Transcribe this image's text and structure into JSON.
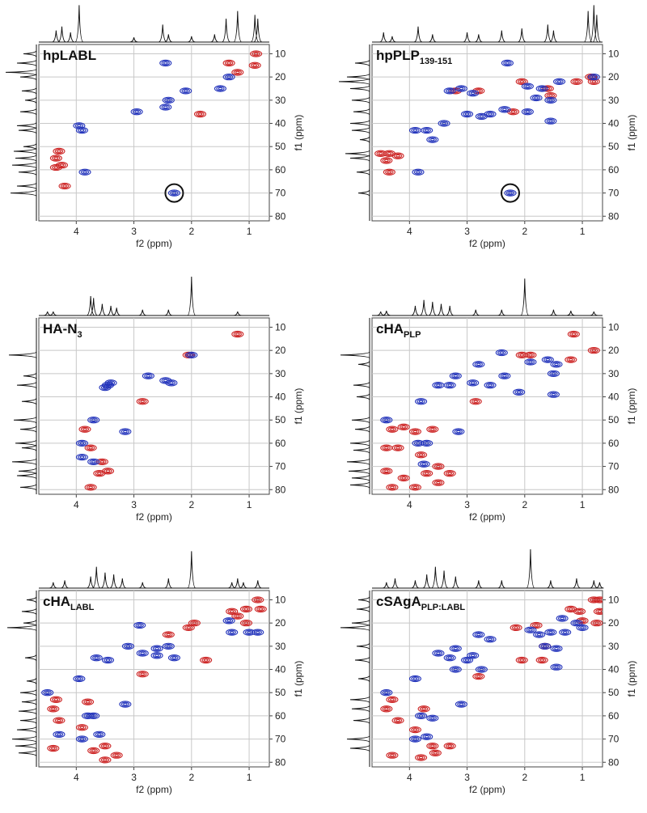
{
  "chart_data": [
    {
      "type": "scatter",
      "title": "hpLABL",
      "xlabel": "f2 (ppm)",
      "ylabel": "f1 (ppm)",
      "xlim": [
        4.65,
        0.65
      ],
      "xticks": [
        4,
        3,
        2,
        1
      ],
      "ylim": [
        6,
        82
      ],
      "yticks": [
        10,
        20,
        30,
        40,
        50,
        60,
        70,
        80
      ],
      "grid": true,
      "series": [
        {
          "color": "#cc2222",
          "x": [
            0.88,
            1.2,
            1.35,
            0.9,
            1.85,
            4.3,
            4.35,
            4.25,
            4.35,
            4.2
          ],
          "values": [
            10,
            18,
            14,
            15,
            36,
            52,
            55,
            58,
            59,
            67
          ]
        },
        {
          "color": "#2233bb",
          "x": [
            2.45,
            1.5,
            1.35,
            2.1,
            2.4,
            2.45,
            2.95,
            3.95,
            3.9,
            3.85,
            2.3
          ],
          "values": [
            14,
            25,
            20,
            26,
            30,
            33,
            35,
            41,
            43,
            61,
            70
          ]
        }
      ],
      "marker": {
        "x": 2.3,
        "y": 70
      },
      "top_projection": {
        "color": "#111111",
        "positions": [
          4.35,
          4.25,
          4.1,
          3.95,
          2.5,
          2.4,
          3.0,
          2.0,
          1.4,
          1.2,
          0.9,
          0.85,
          1.6
        ],
        "values": [
          30,
          40,
          25,
          95,
          45,
          20,
          12,
          15,
          60,
          80,
          70,
          60,
          20
        ]
      },
      "left_projection": {
        "color": "#111111",
        "positions": [
          10,
          14,
          18,
          20,
          26,
          30,
          35,
          41,
          43,
          50,
          52,
          55,
          58,
          61,
          67,
          70
        ],
        "values": [
          40,
          60,
          95,
          50,
          45,
          35,
          50,
          60,
          55,
          40,
          70,
          65,
          75,
          55,
          60,
          80
        ]
      }
    },
    {
      "type": "scatter",
      "title": "hpPLP",
      "title_sub": "139-151",
      "xlabel": "f2 (ppm)",
      "ylabel": "f1 (ppm)",
      "xlim": [
        4.65,
        0.65
      ],
      "xticks": [
        4,
        3,
        2,
        1
      ],
      "ylim": [
        6,
        82
      ],
      "yticks": [
        10,
        20,
        30,
        40,
        50,
        60,
        70,
        80
      ],
      "grid": true,
      "series": [
        {
          "color": "#cc2222",
          "x": [
            0.85,
            0.8,
            1.1,
            1.6,
            1.55,
            2.05,
            2.8,
            3.2,
            4.5,
            4.35,
            4.2,
            4.4,
            4.35,
            2.2
          ],
          "values": [
            20,
            22,
            22,
            25,
            28,
            22,
            26,
            26,
            53,
            53,
            54,
            56,
            61,
            35
          ]
        },
        {
          "color": "#2233bb",
          "x": [
            2.3,
            0.8,
            1.4,
            1.7,
            1.95,
            1.8,
            1.55,
            1.95,
            2.6,
            2.75,
            3.0,
            3.1,
            3.3,
            2.9,
            1.55,
            3.9,
            3.7,
            3.6,
            2.35,
            3.85,
            2.25,
            3.4
          ],
          "values": [
            14,
            20,
            22,
            25,
            24,
            29,
            30,
            35,
            36,
            37,
            36,
            25,
            26,
            27,
            39,
            43,
            43,
            47,
            34,
            61,
            70,
            40
          ]
        }
      ],
      "marker": {
        "x": 2.25,
        "y": 70
      },
      "top_projection": {
        "color": "#111111",
        "positions": [
          4.45,
          4.3,
          3.85,
          3.6,
          3.0,
          2.8,
          2.4,
          2.05,
          1.6,
          1.5,
          0.9,
          0.8,
          0.75
        ],
        "values": [
          25,
          15,
          40,
          20,
          25,
          20,
          30,
          35,
          45,
          30,
          80,
          95,
          70
        ]
      },
      "left_projection": {
        "color": "#111111",
        "positions": [
          14,
          20,
          22,
          25,
          30,
          35,
          40,
          43,
          47,
          53,
          55,
          61,
          70
        ],
        "values": [
          45,
          70,
          95,
          60,
          55,
          50,
          60,
          55,
          30,
          75,
          60,
          40,
          35
        ]
      }
    },
    {
      "type": "scatter",
      "title": "HA-N",
      "title_sub": "3",
      "xlabel": "f2 (ppm)",
      "ylabel": "f1 (ppm)",
      "xlim": [
        4.65,
        0.65
      ],
      "xticks": [
        4,
        3,
        2,
        1
      ],
      "ylim": [
        6,
        82
      ],
      "yticks": [
        10,
        20,
        30,
        40,
        50,
        60,
        70,
        80
      ],
      "grid": true,
      "series": [
        {
          "color": "#cc2222",
          "x": [
            1.2,
            2.05,
            2.85,
            3.85,
            3.75,
            3.45,
            3.6,
            3.75,
            3.55
          ],
          "values": [
            13,
            22,
            42,
            54,
            62,
            72,
            73,
            79,
            68
          ]
        },
        {
          "color": "#2233bb",
          "x": [
            2.0,
            2.75,
            2.45,
            2.35,
            3.4,
            3.5,
            3.45,
            3.7,
            3.9,
            3.15,
            3.7,
            3.9
          ],
          "values": [
            22,
            31,
            33,
            34,
            34,
            36,
            35,
            50,
            60,
            55,
            68,
            66
          ]
        }
      ],
      "top_projection": {
        "color": "#111111",
        "positions": [
          4.5,
          4.4,
          3.75,
          3.7,
          3.55,
          3.4,
          3.3,
          2.85,
          2.4,
          2.0,
          1.2
        ],
        "values": [
          10,
          10,
          50,
          45,
          30,
          25,
          20,
          15,
          15,
          100,
          10
        ]
      },
      "left_projection": {
        "color": "#111111",
        "positions": [
          22,
          31,
          35,
          42,
          50,
          54,
          60,
          62,
          68,
          72,
          74,
          79
        ],
        "values": [
          85,
          40,
          60,
          45,
          70,
          50,
          65,
          45,
          75,
          55,
          60,
          50
        ]
      }
    },
    {
      "type": "scatter",
      "title": "cHA",
      "title_sub": "PLP",
      "xlabel": "f2 (ppm)",
      "ylabel": "f1 (ppm)",
      "xlim": [
        4.65,
        0.65
      ],
      "xticks": [
        4,
        3,
        2,
        1
      ],
      "ylim": [
        6,
        82
      ],
      "yticks": [
        10,
        20,
        30,
        40,
        50,
        60,
        70,
        80
      ],
      "grid": true,
      "series": [
        {
          "color": "#cc2222",
          "x": [
            0.8,
            1.15,
            2.05,
            1.9,
            2.85,
            1.2,
            4.3,
            4.1,
            3.9,
            3.6,
            4.4,
            4.2,
            3.8,
            3.5,
            3.3,
            4.4,
            4.1,
            3.7,
            3.5,
            4.3,
            3.9
          ],
          "values": [
            20,
            13,
            22,
            22,
            42,
            24,
            54,
            53,
            55,
            54,
            62,
            62,
            65,
            70,
            73,
            72,
            75,
            73,
            77,
            79,
            79
          ]
        },
        {
          "color": "#2233bb",
          "x": [
            1.6,
            1.45,
            2.4,
            2.8,
            3.2,
            3.5,
            3.3,
            2.9,
            2.6,
            1.5,
            1.5,
            3.85,
            3.7,
            3.75,
            3.15,
            4.4,
            2.1,
            3.8,
            2.35,
            1.9
          ],
          "values": [
            24,
            26,
            21,
            26,
            31,
            35,
            35,
            34,
            35,
            30,
            39,
            60,
            60,
            69,
            55,
            50,
            38,
            42,
            31,
            25
          ]
        }
      ],
      "top_projection": {
        "color": "#111111",
        "positions": [
          4.5,
          4.4,
          3.9,
          3.75,
          3.6,
          3.45,
          3.3,
          2.85,
          2.4,
          2.0,
          1.5,
          1.2,
          0.8
        ],
        "values": [
          10,
          12,
          25,
          40,
          35,
          30,
          25,
          15,
          15,
          95,
          15,
          12,
          10
        ]
      },
      "left_projection": {
        "color": "#111111",
        "positions": [
          22,
          26,
          35,
          40,
          50,
          54,
          60,
          63,
          68,
          72,
          75,
          78
        ],
        "values": [
          90,
          35,
          50,
          40,
          55,
          45,
          60,
          50,
          70,
          65,
          55,
          60
        ]
      }
    },
    {
      "type": "scatter",
      "title": "cHA",
      "title_sub": "LABL",
      "xlabel": "f2 (ppm)",
      "ylabel": "f1 (ppm)",
      "xlim": [
        4.65,
        0.65
      ],
      "xticks": [
        4,
        3,
        2,
        1
      ],
      "ylim": [
        6,
        82
      ],
      "yticks": [
        10,
        20,
        30,
        40,
        50,
        60,
        70,
        80
      ],
      "grid": true,
      "series": [
        {
          "color": "#cc2222",
          "x": [
            0.85,
            0.8,
            1.05,
            1.2,
            1.3,
            1.05,
            2.05,
            1.95,
            2.4,
            1.75,
            2.85,
            4.4,
            4.35,
            3.8,
            4.3,
            3.9,
            3.5,
            3.7,
            3.3,
            3.5,
            4.4
          ],
          "values": [
            10,
            14,
            14,
            17,
            15,
            20,
            22,
            20,
            25,
            36,
            42,
            57,
            53,
            54,
            62,
            65,
            73,
            75,
            77,
            79,
            74
          ]
        },
        {
          "color": "#2233bb",
          "x": [
            1.35,
            0.85,
            1.0,
            1.3,
            2.9,
            2.4,
            2.6,
            2.85,
            3.45,
            3.65,
            2.6,
            2.3,
            3.1,
            3.95,
            3.8,
            3.7,
            4.5,
            3.15,
            3.6,
            4.3,
            3.9
          ],
          "values": [
            19,
            24,
            24,
            24,
            21,
            30,
            31,
            33,
            36,
            35,
            34,
            35,
            30,
            44,
            60,
            60,
            50,
            55,
            68,
            68,
            70
          ]
        }
      ],
      "top_projection": {
        "color": "#111111",
        "positions": [
          4.4,
          4.2,
          3.75,
          3.65,
          3.5,
          3.35,
          3.2,
          2.85,
          2.4,
          2.0,
          1.3,
          1.2,
          1.1,
          0.85
        ],
        "values": [
          15,
          20,
          30,
          55,
          40,
          35,
          25,
          15,
          25,
          95,
          15,
          25,
          15,
          20
        ]
      },
      "left_projection": {
        "color": "#111111",
        "positions": [
          10,
          15,
          20,
          22,
          35,
          45,
          50,
          54,
          58,
          62,
          66,
          70,
          73,
          76
        ],
        "values": [
          30,
          45,
          40,
          90,
          35,
          30,
          50,
          45,
          55,
          50,
          60,
          75,
          65,
          55
        ]
      }
    },
    {
      "type": "scatter",
      "title": "cSAgA",
      "title_sub": "PLP:LABL",
      "xlabel": "f2 (ppm)",
      "ylabel": "f1 (ppm)",
      "xlim": [
        4.65,
        0.65
      ],
      "xticks": [
        4,
        3,
        2,
        1
      ],
      "ylim": [
        6,
        82
      ],
      "yticks": [
        10,
        20,
        30,
        40,
        50,
        60,
        70,
        80
      ],
      "grid": true,
      "series": [
        {
          "color": "#cc2222",
          "x": [
            0.8,
            0.7,
            1.05,
            0.7,
            1.0,
            0.75,
            1.2,
            2.15,
            1.8,
            1.65,
            1.7,
            2.05,
            2.8,
            4.3,
            4.4,
            4.2,
            3.9,
            3.75,
            3.6,
            3.3,
            3.8,
            4.3,
            3.55
          ],
          "values": [
            10,
            10,
            15,
            15,
            19,
            20,
            14,
            22,
            21,
            30,
            36,
            36,
            43,
            53,
            57,
            62,
            66,
            57,
            73,
            73,
            78,
            77,
            76
          ]
        },
        {
          "color": "#2233bb",
          "x": [
            1.35,
            1.1,
            1.0,
            1.9,
            1.55,
            1.3,
            1.75,
            2.6,
            2.8,
            3.2,
            3.5,
            3.3,
            3.0,
            2.9,
            2.75,
            1.45,
            1.65,
            1.45,
            3.9,
            3.8,
            3.6,
            4.4,
            3.1,
            3.7,
            3.9,
            3.2
          ],
          "values": [
            18,
            20,
            22,
            23,
            24,
            24,
            25,
            27,
            25,
            31,
            33,
            35,
            36,
            34,
            40,
            31,
            30,
            39,
            44,
            60,
            61,
            50,
            55,
            69,
            70,
            40
          ]
        }
      ],
      "top_projection": {
        "color": "#111111",
        "positions": [
          4.4,
          4.25,
          3.9,
          3.7,
          3.55,
          3.4,
          3.2,
          2.8,
          2.4,
          1.9,
          1.55,
          1.1,
          0.8,
          0.7
        ],
        "values": [
          15,
          25,
          20,
          35,
          55,
          45,
          30,
          20,
          20,
          100,
          20,
          25,
          20,
          15
        ]
      },
      "left_projection": {
        "color": "#111111",
        "positions": [
          10,
          14,
          20,
          22,
          30,
          36,
          44,
          53,
          57,
          62,
          70,
          74
        ],
        "values": [
          35,
          40,
          55,
          90,
          40,
          45,
          35,
          60,
          55,
          50,
          70,
          60
        ]
      }
    }
  ]
}
